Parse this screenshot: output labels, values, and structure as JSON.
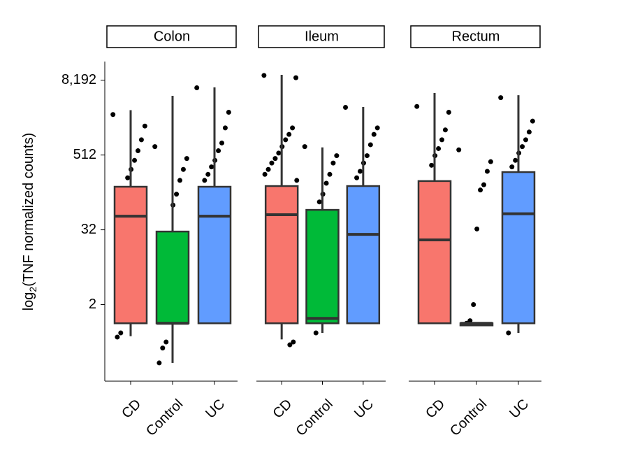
{
  "chart_data": {
    "type": "box",
    "ylabel": {
      "prefix": "log",
      "sub": "2",
      "rest": "(TNF normalized counts)"
    },
    "log_scale": true,
    "log_base": 2,
    "ylim": [
      0.117,
      16384
    ],
    "yticks": [
      2,
      32,
      512,
      {
        "value": 8192,
        "label": "8,192"
      }
    ],
    "facets": [
      {
        "title": "Colon",
        "categories": [
          "CD",
          "Control",
          "UC"
        ],
        "boxes": [
          {
            "color": "#f8766d",
            "min": 0.62,
            "q1": 1,
            "median": 53,
            "q3": 158,
            "max": 2700,
            "points": [
              2300,
              1500,
              900,
              600,
              420,
              300,
              220,
              12,
              0.7,
              0.6
            ]
          },
          {
            "color": "#00ba38",
            "min": 0.23,
            "q1": 1,
            "median": 1,
            "q3": 30,
            "max": 4600,
            "points": [
              700,
              450,
              300,
              200,
              120,
              80,
              8,
              0.5,
              0.4,
              0.23
            ]
          },
          {
            "color": "#619cff",
            "min": 1,
            "q1": 1,
            "median": 53,
            "q3": 158,
            "max": 6300,
            "points": [
              6200,
              2500,
              1400,
              800,
              600,
              420,
              330,
              250,
              200
            ]
          }
        ]
      },
      {
        "title": "Ileum",
        "categories": [
          "CD",
          "Control",
          "UC"
        ],
        "boxes": [
          {
            "color": "#f8766d",
            "min": 0.55,
            "q1": 1,
            "median": 56,
            "q3": 162,
            "max": 10000,
            "points": [
              9800,
              9000,
              1400,
              1100,
              900,
              700,
              550,
              450,
              380,
              300,
              250,
              200,
              0.5,
              0.45
            ]
          },
          {
            "color": "#00ba38",
            "min": 0.7,
            "q1": 1,
            "median": 1.2,
            "q3": 67,
            "max": 680,
            "points": [
              700,
              500,
              380,
              250,
              180,
              120,
              90,
              0.7
            ]
          },
          {
            "color": "#619cff",
            "min": 1,
            "q1": 1,
            "median": 27,
            "q3": 162,
            "max": 3040,
            "points": [
              3000,
              1400,
              1100,
              750,
              500,
              380,
              280,
              220
            ]
          }
        ]
      },
      {
        "title": "Rectum",
        "categories": [
          "CD",
          "Control",
          "UC"
        ],
        "boxes": [
          {
            "color": "#f8766d",
            "min": 1,
            "q1": 1,
            "median": 22,
            "q3": 195,
            "max": 5100,
            "points": [
              3100,
              2500,
              1300,
              900,
              650,
              500,
              350
            ]
          },
          {
            "color": "#555555",
            "min": 1,
            "q1": 1,
            "median": 1,
            "q3": 1,
            "max": 1,
            "points": [
              620,
              400,
              280,
              170,
              140,
              33,
              2,
              1.1,
              1
            ]
          },
          {
            "color": "#619cff",
            "min": 0.7,
            "q1": 1,
            "median": 58,
            "q3": 272,
            "max": 4700,
            "points": [
              4300,
              1800,
              1200,
              900,
              700,
              550,
              420,
              330,
              0.7
            ]
          }
        ]
      }
    ]
  }
}
